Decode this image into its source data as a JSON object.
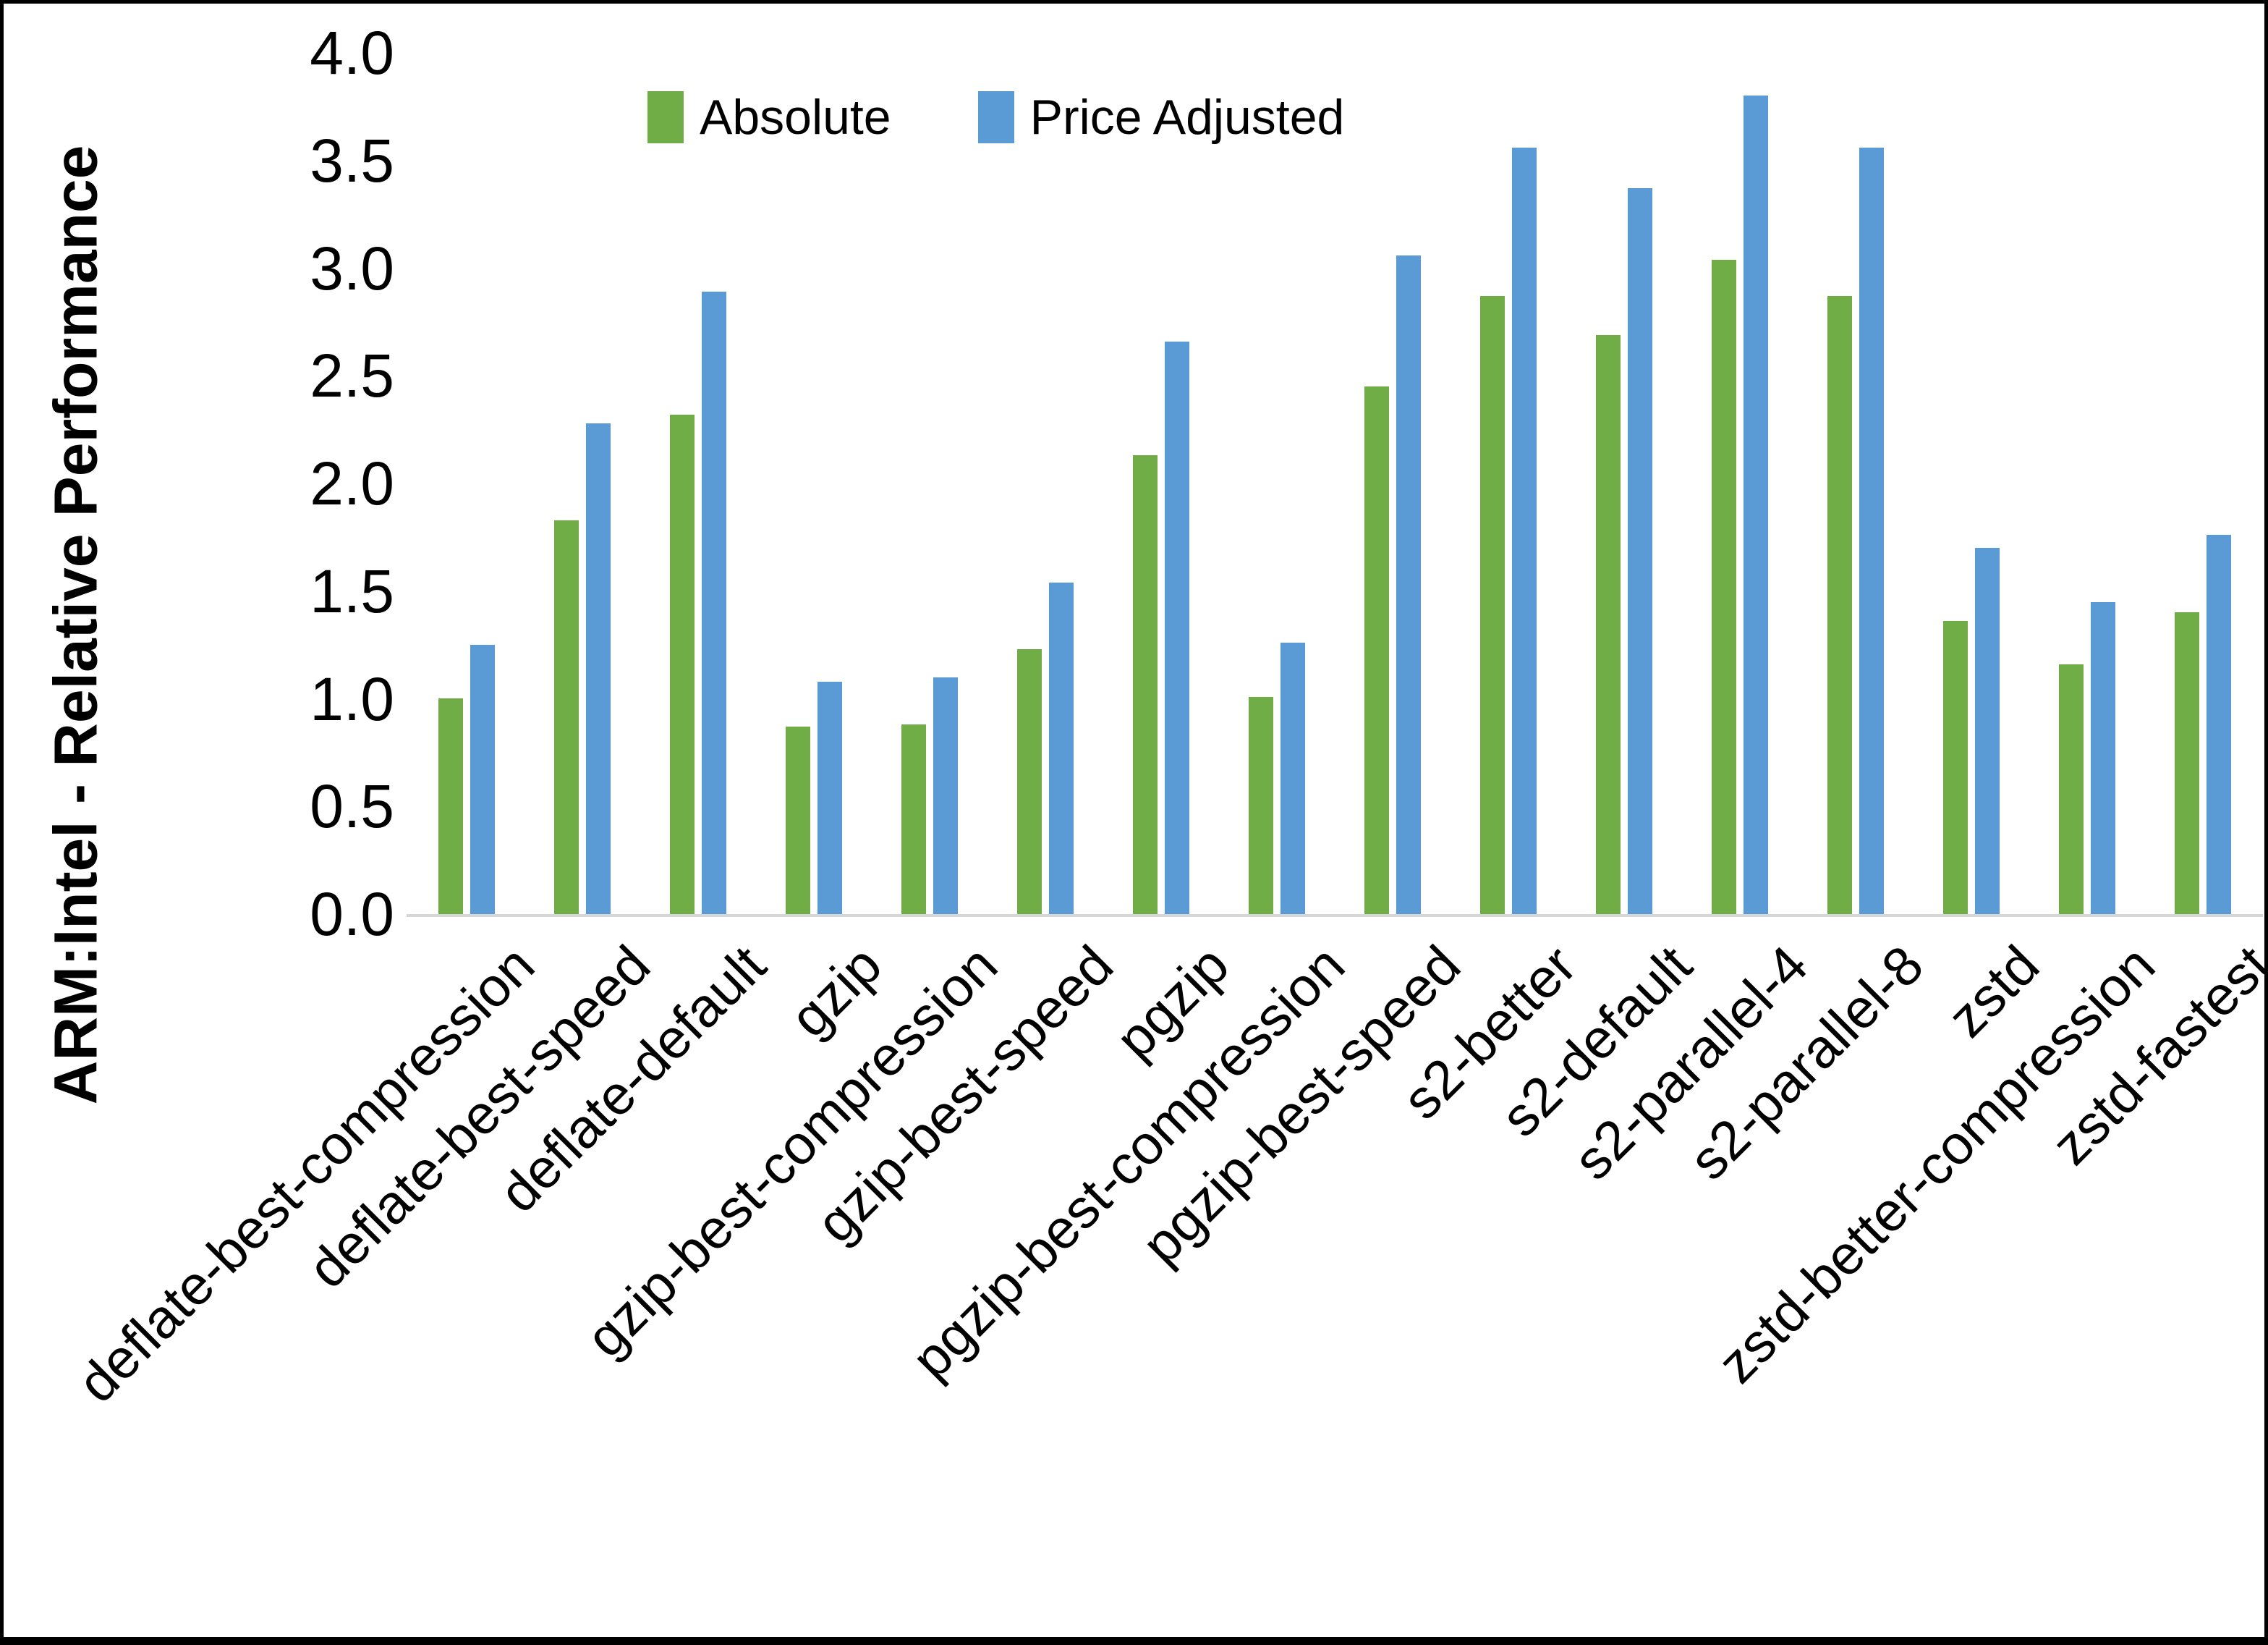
{
  "chart_data": {
    "type": "bar",
    "title": "",
    "ylabel": "ARM:Intel - Relative Performance",
    "xlabel": "",
    "ylim": [
      0.0,
      4.0
    ],
    "ytick_step": 0.5,
    "ytick_labels": [
      "0.0",
      "0.5",
      "1.0",
      "1.5",
      "2.0",
      "2.5",
      "3.0",
      "3.5",
      "4.0"
    ],
    "grid": "off",
    "legend_position": "top-center",
    "categories": [
      "deflate-best-compression",
      "deflate-best-speed",
      "deflate-default",
      "gzip",
      "gzip-best-compression",
      "gzip-best-speed",
      "pgzip",
      "pgzip-best-compression",
      "pgzip-best-speed",
      "s2-better",
      "s2-default",
      "s2-parallel-4",
      "s2-parallel-8",
      "zstd",
      "zstd-better-compression",
      "zstd-fastest"
    ],
    "series": [
      {
        "name": "Absolute",
        "color": "#70AD47",
        "values": [
          1.0,
          1.83,
          2.32,
          0.87,
          0.88,
          1.23,
          2.13,
          1.01,
          2.45,
          2.87,
          2.69,
          3.04,
          2.87,
          1.36,
          1.16,
          1.4
        ]
      },
      {
        "name": "Price Adjusted",
        "color": "#5B9BD5",
        "values": [
          1.25,
          2.28,
          2.89,
          1.08,
          1.1,
          1.54,
          2.66,
          1.26,
          3.06,
          3.56,
          3.37,
          3.8,
          3.56,
          1.7,
          1.45,
          1.76
        ]
      }
    ],
    "axis_line_color": "#D6D6D6",
    "text_color": "#000000"
  },
  "legend": {
    "absolute_label": "Absolute",
    "price_adjusted_label": "Price Adjusted"
  }
}
